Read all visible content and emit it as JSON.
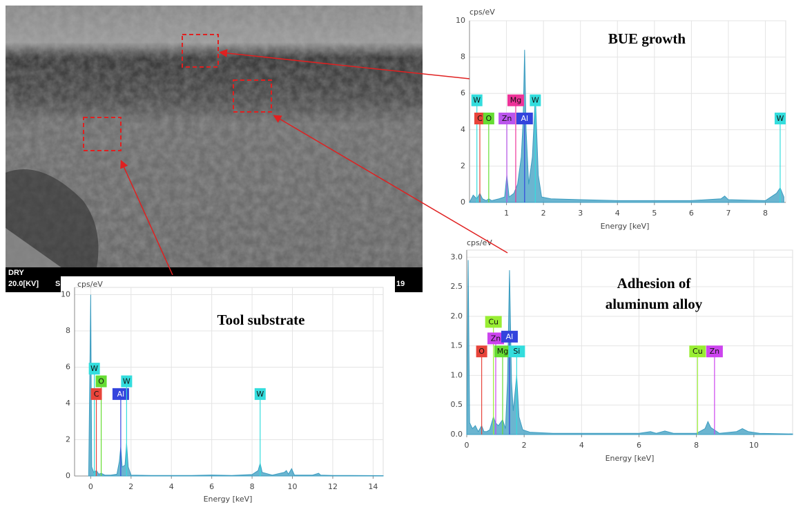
{
  "image": {
    "mode": "DRY",
    "voltage": "20.0[KV]",
    "footer_left": "S",
    "footer_right": "19"
  },
  "chart_data": [
    {
      "type": "spectrum",
      "title": "BUE growth",
      "y_unit": "cps/eV",
      "x_label": "Energy [keV]",
      "color": "#3a9cc0",
      "xlim": [
        0,
        8.55
      ],
      "ylim": [
        0,
        10
      ],
      "xticks": [
        1,
        2,
        3,
        4,
        5,
        6,
        7,
        8
      ],
      "yticks": [
        0,
        2,
        4,
        6,
        8,
        10
      ],
      "grid": true,
      "x": [
        0,
        0.1,
        0.2,
        0.28,
        0.35,
        0.45,
        0.52,
        0.6,
        0.8,
        0.95,
        1.01,
        1.07,
        1.2,
        1.3,
        1.4,
        1.45,
        1.49,
        1.53,
        1.6,
        1.7,
        1.78,
        1.86,
        1.95,
        2.2,
        3,
        4,
        5,
        6,
        6.8,
        6.9,
        7.0,
        8.0,
        8.3,
        8.4,
        8.5
      ],
      "values": [
        0,
        0.4,
        0.2,
        0.5,
        0.2,
        0.1,
        0.2,
        0.1,
        0.2,
        0.3,
        1.5,
        0.3,
        0.5,
        1.0,
        2.5,
        4.5,
        8.4,
        4.0,
        1.0,
        2.5,
        5.9,
        1.5,
        0.3,
        0.2,
        0.15,
        0.1,
        0.1,
        0.1,
        0.2,
        0.35,
        0.15,
        0.1,
        0.5,
        0.8,
        0.3
      ],
      "elements": [
        {
          "label": "W",
          "x": 0.2,
          "color": "#33dddd"
        },
        {
          "label": "C",
          "x": 0.28,
          "color": "#e8443a"
        },
        {
          "label": "O",
          "x": 0.52,
          "color": "#66dd33"
        },
        {
          "label": "Zn",
          "x": 1.01,
          "color": "#bb55ee"
        },
        {
          "label": "Mg",
          "x": 1.25,
          "color": "#ee3399"
        },
        {
          "label": "Al",
          "x": 1.49,
          "color": "#3344dd"
        },
        {
          "label": "W",
          "x": 1.78,
          "color": "#33dddd"
        },
        {
          "label": "W",
          "x": 8.4,
          "color": "#33dddd"
        }
      ]
    },
    {
      "type": "spectrum",
      "title": [
        "Adhesion of",
        "aluminum alloy"
      ],
      "y_unit": "cps/eV",
      "x_label": "Energy [keV]",
      "color": "#3a9cc0",
      "xlim": [
        0,
        11.35
      ],
      "ylim": [
        0,
        3.12
      ],
      "xticks": [
        0,
        2,
        4,
        6,
        8,
        10
      ],
      "yticks": [
        {
          "value": 0,
          "label": "0.0"
        },
        0.5,
        {
          "value": 1,
          "label": "1.0"
        },
        1.5,
        {
          "value": 2,
          "label": "2.0"
        },
        2.5,
        {
          "value": 3,
          "label": "3.0"
        }
      ],
      "grid": true,
      "x": [
        0,
        0.05,
        0.1,
        0.2,
        0.3,
        0.4,
        0.52,
        0.6,
        0.7,
        0.8,
        0.93,
        1.0,
        1.1,
        1.25,
        1.35,
        1.42,
        1.49,
        1.56,
        1.62,
        1.74,
        1.82,
        1.95,
        2.2,
        3,
        4,
        5,
        6,
        6.4,
        6.6,
        6.9,
        7.2,
        8.0,
        8.3,
        8.4,
        8.5,
        8.8,
        9.4,
        9.6,
        9.8,
        10.2,
        11.35
      ],
      "values": [
        0,
        2.95,
        0.2,
        0.1,
        0.15,
        0.05,
        0.15,
        0.05,
        0.05,
        0.08,
        0.3,
        0.2,
        0.15,
        0.25,
        0.1,
        0.9,
        2.78,
        0.9,
        0.4,
        1.0,
        0.3,
        0.08,
        0.04,
        0.02,
        0.02,
        0.02,
        0.02,
        0.05,
        0.02,
        0.06,
        0.02,
        0.02,
        0.1,
        0.22,
        0.12,
        0.02,
        0.05,
        0.1,
        0.05,
        0.02,
        0.01
      ],
      "elements": [
        {
          "label": "O",
          "x": 0.52,
          "color": "#e8443a"
        },
        {
          "label": "Cu",
          "x": 0.93,
          "color": "#99ee33"
        },
        {
          "label": "Zn",
          "x": 1.01,
          "color": "#cc44ee"
        },
        {
          "label": "Mg",
          "x": 1.25,
          "color": "#66dd33"
        },
        {
          "label": "Al",
          "x": 1.49,
          "color": "#3344dd"
        },
        {
          "label": "Si",
          "x": 1.74,
          "color": "#33dddd"
        },
        {
          "label": "Cu",
          "x": 8.04,
          "color": "#99ee33"
        },
        {
          "label": "Zn",
          "x": 8.63,
          "color": "#cc44ee"
        }
      ]
    },
    {
      "type": "spectrum",
      "title": "Tool substrate",
      "y_unit": "cps/eV",
      "x_label": "Energy [keV]",
      "color": "#3a9cc0",
      "xlim": [
        -0.8,
        14.5
      ],
      "ylim": [
        0,
        10.4
      ],
      "xticks": [
        0,
        2,
        4,
        6,
        8,
        10,
        12,
        14
      ],
      "yticks": [
        0,
        2,
        4,
        6,
        8,
        10
      ],
      "grid": true,
      "x": [
        -0.1,
        0,
        0.05,
        0.15,
        0.28,
        0.4,
        0.52,
        0.7,
        1.0,
        1.3,
        1.42,
        1.49,
        1.56,
        1.7,
        1.78,
        1.86,
        2.0,
        3,
        4,
        5,
        6,
        7,
        8,
        8.3,
        8.4,
        8.5,
        9,
        9.6,
        9.7,
        9.8,
        9.96,
        10.1,
        11,
        11.3,
        11.4,
        12,
        14.5
      ],
      "values": [
        0,
        10,
        0.5,
        0.2,
        0.3,
        0.1,
        0.15,
        0.05,
        0.05,
        0.1,
        0.8,
        1.6,
        0.5,
        0.6,
        1.8,
        0.5,
        0.05,
        0.03,
        0.03,
        0.03,
        0.05,
        0.03,
        0.08,
        0.3,
        0.7,
        0.2,
        0.05,
        0.2,
        0.3,
        0.1,
        0.4,
        0.05,
        0.05,
        0.15,
        0.05,
        0.03,
        0.02
      ],
      "elements": [
        {
          "label": "W",
          "x": 0.18,
          "color": "#33dddd"
        },
        {
          "label": "O",
          "x": 0.52,
          "color": "#66dd33"
        },
        {
          "label": "C",
          "x": 0.28,
          "color": "#e8443a"
        },
        {
          "label": "Al",
          "x": 1.49,
          "color": "#3344dd"
        },
        {
          "label": "W",
          "x": 1.78,
          "color": "#33dddd"
        },
        {
          "label": "W",
          "x": 8.4,
          "color": "#33dddd"
        }
      ]
    }
  ]
}
